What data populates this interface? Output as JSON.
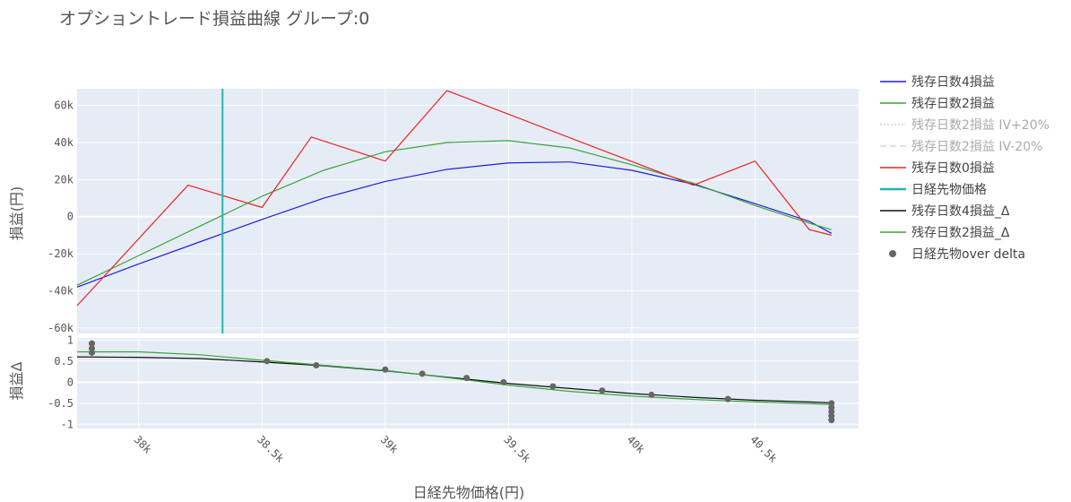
{
  "chart_data": {
    "type": "line",
    "title": "オプショントレード損益曲線 グループ:0",
    "xlabel": "日経先物価格(円)",
    "xlim": [
      37750,
      40920
    ],
    "x_ticks": [
      38000,
      38500,
      39000,
      39500,
      40000,
      40500
    ],
    "x_tick_labels": [
      "38k",
      "38.5k",
      "39k",
      "39.5k",
      "40k",
      "40.5k"
    ],
    "top_panel": {
      "ylabel": "損益(円)",
      "ylim": [
        -63000,
        69000
      ],
      "y_ticks": [
        -60000,
        -40000,
        -20000,
        0,
        20000,
        40000,
        60000
      ],
      "y_tick_labels": [
        "-60k",
        "-40k",
        "-20k",
        "0",
        "20k",
        "40k",
        "60k"
      ],
      "series": [
        {
          "name": "残存日数4損益",
          "color": "#1f1fdd",
          "dash": "",
          "x": [
            37750,
            38000,
            38250,
            38500,
            38750,
            39000,
            39250,
            39500,
            39750,
            40000,
            40250,
            40500,
            40720,
            40810
          ],
          "y": [
            -38000,
            -25500,
            -13500,
            -1500,
            10000,
            19000,
            25500,
            29000,
            29500,
            25000,
            17500,
            7000,
            -2500,
            -9000
          ]
        },
        {
          "name": "残存日数2損益",
          "color": "#3aa33a",
          "dash": "",
          "x": [
            37750,
            38000,
            38250,
            38500,
            38750,
            39000,
            39250,
            39500,
            39750,
            40000,
            40250,
            40500,
            40720,
            40810
          ],
          "y": [
            -37000,
            -21000,
            -5000,
            11000,
            25000,
            35000,
            40000,
            41000,
            37000,
            28000,
            18000,
            6000,
            -3500,
            -7000
          ]
        },
        {
          "name": "残存日数2損益 IV+20%",
          "color": "#c8d8e8",
          "dash": "3,3",
          "legend_only": true,
          "x": [],
          "y": []
        },
        {
          "name": "残存日数2損益 IV-20%",
          "color": "#c8e0c8",
          "dash": "8,4",
          "legend_only": true,
          "x": [],
          "y": []
        },
        {
          "name": "残存日数0損益",
          "color": "#ee2222",
          "dash": "",
          "x": [
            37750,
            38200,
            38500,
            38700,
            39000,
            39250,
            40250,
            40500,
            40720,
            40810
          ],
          "y": [
            -48000,
            17000,
            5000,
            43000,
            30000,
            68000,
            17000,
            30000,
            -7000,
            -10000
          ]
        },
        {
          "name": "日経先物価格",
          "color": "#22b5b0",
          "dash": "",
          "width": 2,
          "x": [
            38340,
            38340
          ],
          "y": [
            -63000,
            69000
          ]
        }
      ]
    },
    "bottom_panel": {
      "ylabel": "損益Δ",
      "ylim": [
        -1.1,
        1.05
      ],
      "y_ticks": [
        -1,
        -0.5,
        0,
        0.5,
        1
      ],
      "y_tick_labels": [
        "-1",
        "-0.5",
        "0",
        "0.5",
        "1"
      ],
      "series": [
        {
          "name": "残存日数4損益_Δ",
          "color": "#111111",
          "dash": "",
          "x": [
            37750,
            38000,
            38250,
            38500,
            38750,
            39000,
            39250,
            39500,
            39750,
            40000,
            40250,
            40500,
            40720,
            40810
          ],
          "y": [
            0.6,
            0.59,
            0.56,
            0.48,
            0.39,
            0.27,
            0.12,
            -0.03,
            -0.15,
            -0.27,
            -0.36,
            -0.43,
            -0.47,
            -0.49
          ]
        },
        {
          "name": "残存日数2損益_Δ",
          "color": "#3aa33a",
          "dash": "",
          "x": [
            37750,
            38000,
            38250,
            38500,
            38750,
            39000,
            39250,
            39500,
            39750,
            40000,
            40250,
            40500,
            40720,
            40810
          ],
          "y": [
            0.72,
            0.72,
            0.65,
            0.52,
            0.4,
            0.28,
            0.11,
            -0.07,
            -0.22,
            -0.33,
            -0.41,
            -0.47,
            -0.51,
            -0.53
          ]
        },
        {
          "name": "日経先物over delta",
          "color": "#666666",
          "marker": "circle",
          "x": [
            37810,
            37810,
            37810,
            38520,
            38720,
            39000,
            39150,
            39330,
            39480,
            39680,
            39880,
            40080,
            40390,
            40810,
            40810,
            40810,
            40810,
            40810
          ],
          "y": [
            0.92,
            0.8,
            0.7,
            0.5,
            0.4,
            0.3,
            0.2,
            0.1,
            0.0,
            -0.1,
            -0.2,
            -0.3,
            -0.4,
            -0.5,
            -0.6,
            -0.7,
            -0.8,
            -0.9
          ]
        }
      ]
    },
    "legend": {
      "position": "right",
      "entries": [
        {
          "label": "残存日数4損益",
          "color": "#1f1fdd",
          "style": "line",
          "dim": false
        },
        {
          "label": "残存日数2損益",
          "color": "#3aa33a",
          "style": "line",
          "dim": false
        },
        {
          "label": "残存日数2損益 IV+20%",
          "color": "#c8d8e8",
          "style": "dot",
          "dim": true
        },
        {
          "label": "残存日数2損益 IV-20%",
          "color": "#c8e0c8",
          "style": "dash",
          "dim": true
        },
        {
          "label": "残存日数0損益",
          "color": "#ee2222",
          "style": "line",
          "dim": false
        },
        {
          "label": "日経先物価格",
          "color": "#22b5b0",
          "style": "thick",
          "dim": false
        },
        {
          "label": "残存日数4損益_Δ",
          "color": "#111111",
          "style": "line",
          "dim": false
        },
        {
          "label": "残存日数2損益_Δ",
          "color": "#3aa33a",
          "style": "line",
          "dim": false
        },
        {
          "label": "日経先物over delta",
          "color": "#666666",
          "style": "marker",
          "dim": false
        }
      ]
    },
    "grid": true,
    "background": "#e5ecf6"
  }
}
